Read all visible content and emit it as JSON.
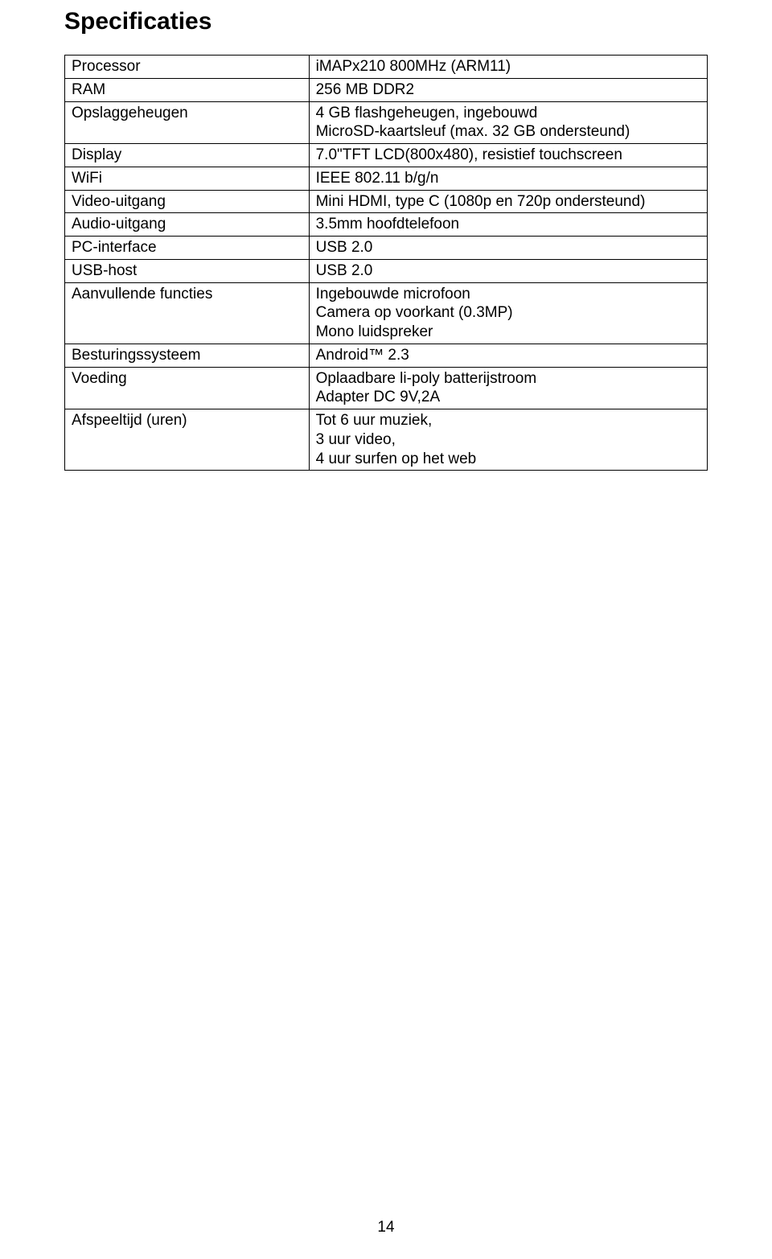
{
  "title": "Specificaties",
  "table": {
    "rows": [
      {
        "label": "Processor",
        "value": "iMAPx210 800MHz (ARM11)"
      },
      {
        "label": "RAM",
        "value": "256 MB DDR2"
      },
      {
        "label": "Opslaggeheugen",
        "value": "4 GB flashgeheugen, ingebouwd\nMicroSD-kaartsleuf (max. 32 GB ondersteund)"
      },
      {
        "label": "Display",
        "value": "7.0\"TFT LCD(800x480), resistief touchscreen"
      },
      {
        "label": "WiFi",
        "value": "IEEE 802.11 b/g/n"
      },
      {
        "label": "Video-uitgang",
        "value": "Mini HDMI, type C (1080p en 720p ondersteund)"
      },
      {
        "label": "Audio-uitgang",
        "value": "3.5mm hoofdtelefoon"
      },
      {
        "label": "PC-interface",
        "value": "USB 2.0"
      },
      {
        "label": "USB-host",
        "value": "USB 2.0"
      },
      {
        "label": "Aanvullende functies",
        "value": "Ingebouwde microfoon\nCamera op voorkant (0.3MP)\nMono luidspreker"
      },
      {
        "label": "Besturingssysteem",
        "value": "Android™ 2.3"
      },
      {
        "label": "Voeding",
        "value": "Oplaadbare li-poly batterijstroom\nAdapter DC 9V,2A"
      },
      {
        "label": "Afspeeltijd (uren)",
        "value": "Tot 6 uur muziek,\n3 uur video,\n4 uur surfen op het web"
      }
    ]
  },
  "page_number": "14"
}
